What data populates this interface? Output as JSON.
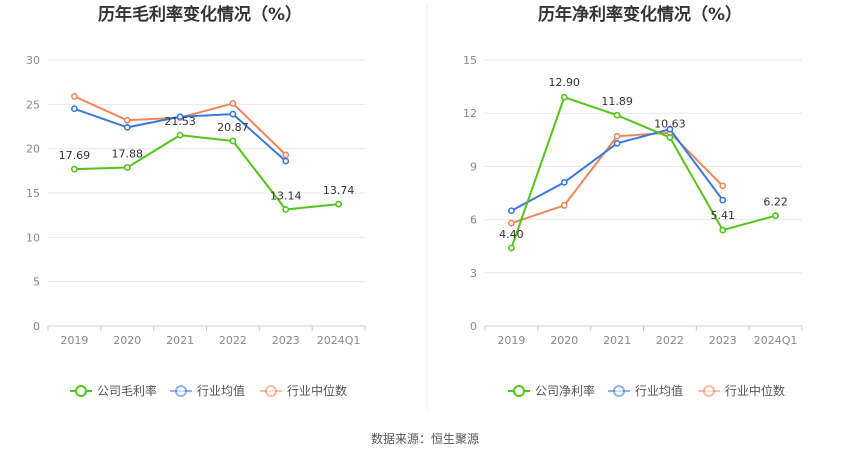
{
  "source": "数据来源：恒生聚源",
  "chart_data": [
    {
      "type": "line",
      "title": "历年毛利率变化情况（%）",
      "categories": [
        "2019",
        "2020",
        "2021",
        "2022",
        "2023",
        "2024Q1"
      ],
      "ylim": [
        0,
        30
      ],
      "yticks": [
        "0",
        "5",
        "10",
        "15",
        "20",
        "25",
        "30"
      ],
      "grid": true,
      "legend_position": "bottom",
      "series": [
        {
          "name": "公司毛利率",
          "color": "#52c41a",
          "values": [
            17.69,
            17.88,
            21.53,
            20.87,
            13.14,
            13.74
          ],
          "labels": [
            "17.69",
            "17.88",
            "21.53",
            "20.87",
            "13.14",
            "13.74"
          ]
        },
        {
          "name": "行业均值",
          "color": "#3a78e0",
          "values": [
            24.5,
            22.4,
            23.6,
            23.9,
            18.6,
            null
          ]
        },
        {
          "name": "行业中位数",
          "color": "#f0875a",
          "values": [
            25.9,
            23.2,
            23.5,
            25.1,
            19.3,
            null
          ]
        }
      ]
    },
    {
      "type": "line",
      "title": "历年净利率变化情况（%）",
      "categories": [
        "2019",
        "2020",
        "2021",
        "2022",
        "2023",
        "2024Q1"
      ],
      "ylim": [
        0,
        15
      ],
      "yticks": [
        "0",
        "3",
        "6",
        "9",
        "12",
        "15"
      ],
      "grid": true,
      "legend_position": "bottom",
      "series": [
        {
          "name": "公司净利率",
          "color": "#52c41a",
          "values": [
            4.4,
            12.9,
            11.89,
            10.63,
            5.41,
            6.22
          ],
          "labels": [
            "4.40",
            "12.90",
            "11.89",
            "10.63",
            "5.41",
            "6.22"
          ]
        },
        {
          "name": "行业均值",
          "color": "#3a78e0",
          "values": [
            6.5,
            8.1,
            10.3,
            11.1,
            7.1,
            null
          ]
        },
        {
          "name": "行业中位数",
          "color": "#f0875a",
          "values": [
            5.8,
            6.8,
            10.7,
            10.9,
            7.9,
            null
          ]
        }
      ]
    }
  ]
}
